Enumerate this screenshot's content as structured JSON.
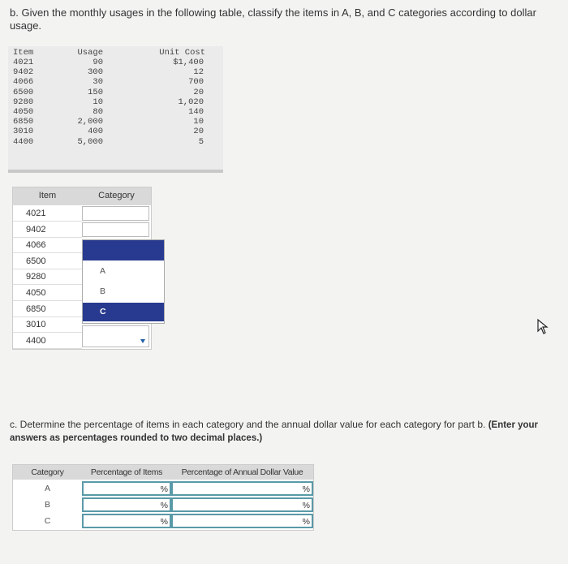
{
  "question_b": "b. Given the monthly usages in the following table, classify the items in A, B, and C categories according to dollar usage.",
  "data_table": {
    "headers": [
      "Item",
      "Usage",
      "Unit Cost"
    ],
    "rows": [
      [
        "4021",
        "90",
        "$1,400"
      ],
      [
        "9402",
        "300",
        "12"
      ],
      [
        "4066",
        "30",
        "700"
      ],
      [
        "6500",
        "150",
        "20"
      ],
      [
        "9280",
        "10",
        "1,020"
      ],
      [
        "4050",
        "80",
        "140"
      ],
      [
        "6850",
        "2,000",
        "10"
      ],
      [
        "3010",
        "400",
        "20"
      ],
      [
        "4400",
        "5,000",
        "5"
      ]
    ]
  },
  "classify_table": {
    "headers": [
      "Item",
      "Category"
    ],
    "items": [
      "4021",
      "9402",
      "4066",
      "6500",
      "9280",
      "4050",
      "6850",
      "3010",
      "4400"
    ],
    "options": [
      "A",
      "B",
      "C"
    ]
  },
  "question_c": {
    "text": "c. Determine the percentage of items in each category and the annual dollar value for each category for part b.",
    "instruction": "(Enter your answers as percentages rounded to two decimal places.)"
  },
  "result_table": {
    "headers": [
      "Category",
      "Percentage of Items",
      "Percentage of Annual Dollar Value"
    ],
    "categories": [
      "A",
      "B",
      "C"
    ],
    "unit": "%"
  }
}
